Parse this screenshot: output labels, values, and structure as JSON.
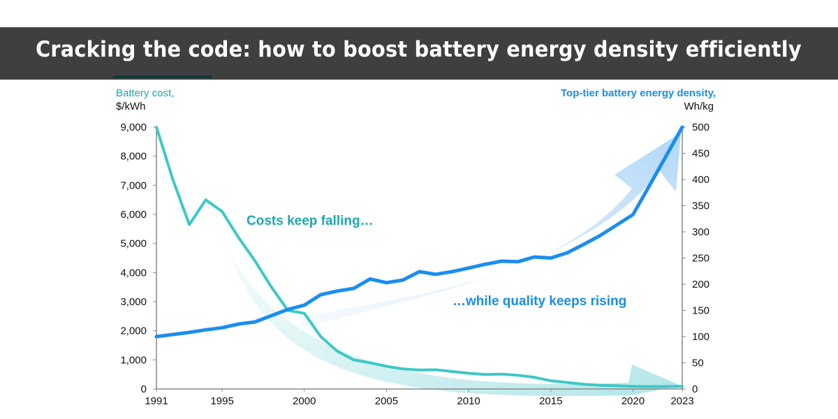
{
  "header": {
    "title": "Cracking the code: how to boost battery energy density efficiently"
  },
  "chart_data": {
    "type": "line",
    "title": "",
    "left_axis": {
      "label": "Battery cost,",
      "unit": "$/kWh",
      "ylim": [
        0,
        9000
      ],
      "ticks": [
        0,
        1000,
        2000,
        3000,
        4000,
        5000,
        6000,
        7000,
        8000,
        9000
      ],
      "tick_labels": [
        "0",
        "1,000",
        "2,000",
        "3,000",
        "4,000",
        "5,000",
        "6,000",
        "7,000",
        "8,000",
        "9,000"
      ]
    },
    "right_axis": {
      "label": "Top-tier battery energy density,",
      "unit": "Wh/kg",
      "ylim": [
        0,
        500
      ],
      "ticks": [
        0,
        50,
        100,
        150,
        200,
        250,
        300,
        350,
        400,
        450,
        500
      ],
      "tick_labels": [
        "0",
        "50",
        "100",
        "150",
        "200",
        "250",
        "300",
        "350",
        "400",
        "450",
        "500"
      ]
    },
    "x_axis": {
      "xlim": [
        1991,
        2023
      ],
      "ticks": [
        1991,
        1995,
        2000,
        2005,
        2010,
        2015,
        2020,
        2023
      ],
      "tick_labels": [
        "1991",
        "1995",
        "2000",
        "2005",
        "2010",
        "2015",
        "2020",
        "2023"
      ]
    },
    "x": [
      1991,
      1992,
      1993,
      1994,
      1995,
      1996,
      1997,
      1998,
      1999,
      2000,
      2001,
      2002,
      2003,
      2004,
      2005,
      2006,
      2007,
      2008,
      2009,
      2010,
      2011,
      2012,
      2013,
      2014,
      2015,
      2016,
      2017,
      2018,
      2019,
      2020,
      2021,
      2022,
      2023
    ],
    "series": [
      {
        "name": "Battery cost",
        "axis": "left",
        "color": "#3cc9c6",
        "values": [
          9000,
          7200,
          5650,
          6500,
          6100,
          5200,
          4400,
          3500,
          2700,
          2600,
          1800,
          1300,
          1000,
          900,
          780,
          690,
          650,
          660,
          600,
          540,
          500,
          510,
          470,
          400,
          280,
          220,
          160,
          130,
          110,
          90,
          85,
          85,
          90
        ]
      },
      {
        "name": "Top-tier battery energy density",
        "axis": "right",
        "color": "#1a8df0",
        "values": [
          100,
          104,
          108,
          113,
          117,
          124,
          128,
          140,
          152,
          160,
          180,
          187,
          192,
          210,
          203,
          208,
          224,
          219,
          224,
          231,
          238,
          244,
          243,
          252,
          250,
          260,
          276,
          293,
          313,
          333,
          388,
          444,
          500
        ]
      }
    ],
    "annotations": [
      {
        "text": "Costs keep falling…",
        "color": "#1fa7b0"
      },
      {
        "text": "…while quality keeps rising",
        "color": "#1a8ce8"
      }
    ],
    "grid": false,
    "legend": "none"
  }
}
